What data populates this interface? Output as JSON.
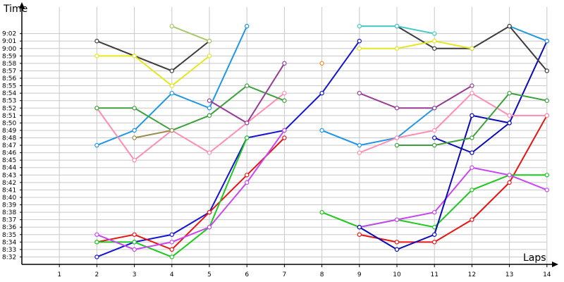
{
  "chart_data": {
    "type": "line",
    "title": "",
    "xlabel": "Laps",
    "ylabel": "Time",
    "x": [
      1,
      2,
      3,
      4,
      5,
      6,
      7,
      8,
      9,
      10,
      11,
      12,
      13,
      14
    ],
    "ylim_seconds": [
      511,
      545
    ],
    "ylim": [
      "8:31",
      "9:05"
    ],
    "y_ticks": [
      "8:32",
      "8:33",
      "8:34",
      "8:35",
      "8:36",
      "8:37",
      "8:38",
      "8:39",
      "8:40",
      "8:41",
      "8:42",
      "8:43",
      "8:44",
      "8:45",
      "8:46",
      "8:47",
      "8:48",
      "8:49",
      "8:50",
      "8:51",
      "8:52",
      "8:53",
      "8:54",
      "8:55",
      "8:56",
      "8:57",
      "8:58",
      "8:59",
      "9:00",
      "9:01",
      "9:02"
    ],
    "y_value_format": "m:ss",
    "grid": true,
    "legend": "none",
    "series": [
      {
        "color": "#1414d2",
        "points": [
          [
            2,
            "8:32"
          ],
          [
            3,
            "8:34"
          ],
          [
            4,
            "8:35"
          ],
          [
            5,
            "8:38"
          ],
          [
            6,
            "8:48"
          ],
          [
            7,
            "8:49"
          ],
          [
            8,
            "8:54"
          ],
          [
            9,
            "9:01"
          ]
        ]
      },
      {
        "color": "#e81414",
        "points": [
          [
            2,
            "8:34"
          ],
          [
            3,
            "8:35"
          ],
          [
            4,
            "8:33"
          ],
          [
            5,
            "8:38"
          ],
          [
            6,
            "8:43"
          ],
          [
            7,
            "8:48"
          ]
        ]
      },
      {
        "color": "#e81414",
        "points": [
          [
            9,
            "8:35"
          ],
          [
            10,
            "8:34"
          ],
          [
            11,
            "8:34"
          ],
          [
            12,
            "8:37"
          ],
          [
            13,
            "8:42"
          ],
          [
            14,
            "8:51"
          ]
        ]
      },
      {
        "color": "#1ec81e",
        "points": [
          [
            2,
            "8:34"
          ],
          [
            3,
            "8:34"
          ],
          [
            4,
            "8:32"
          ],
          [
            5,
            "8:36"
          ],
          [
            6,
            "8:48"
          ]
        ]
      },
      {
        "color": "#1ec81e",
        "points": [
          [
            8,
            "8:38"
          ],
          [
            9,
            "8:36"
          ],
          [
            10,
            "8:37"
          ],
          [
            11,
            "8:36"
          ],
          [
            12,
            "8:41"
          ],
          [
            13,
            "8:43"
          ],
          [
            14,
            "8:43"
          ]
        ]
      },
      {
        "color": "#c846f0",
        "points": [
          [
            2,
            "8:35"
          ],
          [
            3,
            "8:33"
          ],
          [
            4,
            "8:34"
          ],
          [
            5,
            "8:36"
          ],
          [
            6,
            "8:42"
          ],
          [
            7,
            "8:49"
          ]
        ]
      },
      {
        "color": "#c846f0",
        "points": [
          [
            9,
            "8:36"
          ],
          [
            10,
            "8:37"
          ],
          [
            11,
            "8:38"
          ],
          [
            12,
            "8:44"
          ],
          [
            13,
            "8:43"
          ],
          [
            14,
            "8:41"
          ]
        ]
      },
      {
        "color": "#0a0ab4",
        "points": [
          [
            9,
            "8:36"
          ],
          [
            10,
            "8:33"
          ],
          [
            11,
            "8:35"
          ],
          [
            12,
            "8:51"
          ],
          [
            13,
            "8:50"
          ],
          [
            14,
            "9:01"
          ]
        ]
      },
      {
        "color": "#0a0ab4",
        "points": [
          [
            11,
            "8:48"
          ],
          [
            12,
            "8:46"
          ],
          [
            13,
            "8:50"
          ]
        ]
      },
      {
        "color": "#1e96e6",
        "points": [
          [
            2,
            "8:47"
          ],
          [
            3,
            "8:49"
          ],
          [
            4,
            "8:54"
          ],
          [
            5,
            "8:52"
          ],
          [
            6,
            "9:03"
          ]
        ]
      },
      {
        "color": "#1e96e6",
        "points": [
          [
            8,
            "8:49"
          ],
          [
            9,
            "8:47"
          ],
          [
            10,
            "8:48"
          ],
          [
            11,
            "8:52"
          ]
        ]
      },
      {
        "color": "#1e96e6",
        "points": [
          [
            13,
            "9:03"
          ],
          [
            14,
            "9:01"
          ]
        ]
      },
      {
        "color": "#ff8cb4",
        "points": [
          [
            2,
            "8:52"
          ],
          [
            3,
            "8:45"
          ],
          [
            4,
            "8:49"
          ],
          [
            5,
            "8:46"
          ],
          [
            6,
            "8:50"
          ],
          [
            7,
            "8:54"
          ]
        ]
      },
      {
        "color": "#ff8cb4",
        "points": [
          [
            9,
            "8:46"
          ],
          [
            10,
            "8:48"
          ],
          [
            11,
            "8:49"
          ],
          [
            12,
            "8:54"
          ],
          [
            13,
            "8:51"
          ],
          [
            14,
            "8:51"
          ]
        ]
      },
      {
        "color": "#3ca03c",
        "points": [
          [
            2,
            "8:52"
          ],
          [
            3,
            "8:52"
          ],
          [
            4,
            "8:49"
          ],
          [
            5,
            "8:51"
          ],
          [
            6,
            "8:55"
          ],
          [
            7,
            "8:53"
          ]
        ]
      },
      {
        "color": "#3ca03c",
        "points": [
          [
            10,
            "8:47"
          ],
          [
            11,
            "8:47"
          ],
          [
            12,
            "8:48"
          ],
          [
            13,
            "8:54"
          ],
          [
            14,
            "8:53"
          ]
        ]
      },
      {
        "color": "#963c96",
        "points": [
          [
            5,
            "8:53"
          ],
          [
            6,
            "8:50"
          ],
          [
            7,
            "8:58"
          ]
        ]
      },
      {
        "color": "#963c96",
        "points": [
          [
            9,
            "8:54"
          ],
          [
            10,
            "8:52"
          ],
          [
            11,
            "8:52"
          ],
          [
            12,
            "8:55"
          ]
        ]
      },
      {
        "color": "#3c3c3c",
        "points": [
          [
            2,
            "9:01"
          ],
          [
            4,
            "8:57"
          ],
          [
            5,
            "9:01"
          ]
        ]
      },
      {
        "color": "#3c3c3c",
        "points": [
          [
            10,
            "9:03"
          ],
          [
            11,
            "9:00"
          ],
          [
            12,
            "9:00"
          ],
          [
            13,
            "9:03"
          ],
          [
            14,
            "8:57"
          ]
        ]
      },
      {
        "color": "#e6e61e",
        "points": [
          [
            2,
            "8:59"
          ],
          [
            3,
            "8:59"
          ],
          [
            4,
            "8:55"
          ],
          [
            5,
            "8:59"
          ]
        ]
      },
      {
        "color": "#e6e61e",
        "points": [
          [
            9,
            "9:00"
          ],
          [
            10,
            "9:00"
          ],
          [
            11,
            "9:01"
          ],
          [
            12,
            "9:00"
          ]
        ]
      },
      {
        "color": "#aac864",
        "points": [
          [
            4,
            "9:03"
          ],
          [
            5,
            "9:01"
          ]
        ]
      },
      {
        "color": "#46c8c8",
        "points": [
          [
            9,
            "9:03"
          ],
          [
            10,
            "9:03"
          ],
          [
            11,
            "9:02"
          ]
        ]
      },
      {
        "color": "#968c4b",
        "points": [
          [
            3,
            "8:48"
          ],
          [
            4,
            "8:49"
          ]
        ]
      },
      {
        "color": "#f08c1e",
        "points": [
          [
            8,
            "8:58"
          ]
        ]
      }
    ]
  }
}
